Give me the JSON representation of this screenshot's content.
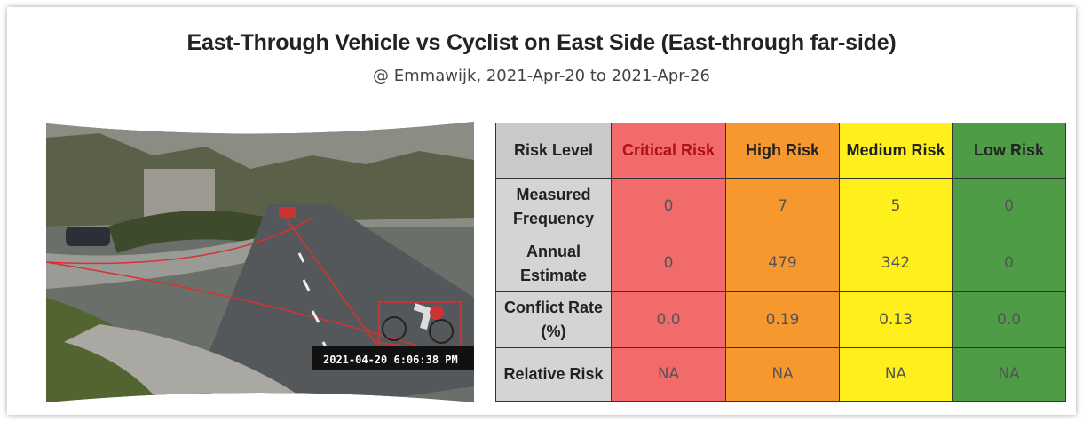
{
  "header": {
    "title": "East-Through Vehicle vs Cyclist on East Side (East-through far-side)",
    "subtitle": "@ Emmawijk, 2021-Apr-20 to 2021-Apr-26"
  },
  "image": {
    "timestamp": "2021-04-20 6:06:38 PM"
  },
  "table": {
    "columns": [
      "Risk Level",
      "Critical Risk",
      "High Risk",
      "Medium Risk",
      "Low Risk"
    ],
    "rows": [
      [
        "Measured Frequency",
        "0",
        "7",
        "5",
        "0"
      ],
      [
        "Annual Estimate",
        "0",
        "479",
        "342",
        "0"
      ],
      [
        "Conflict Rate (%)",
        "0.0",
        "0.19",
        "0.13",
        "0.0"
      ],
      [
        "Relative Risk",
        "NA",
        "NA",
        "NA",
        "NA"
      ]
    ]
  }
}
